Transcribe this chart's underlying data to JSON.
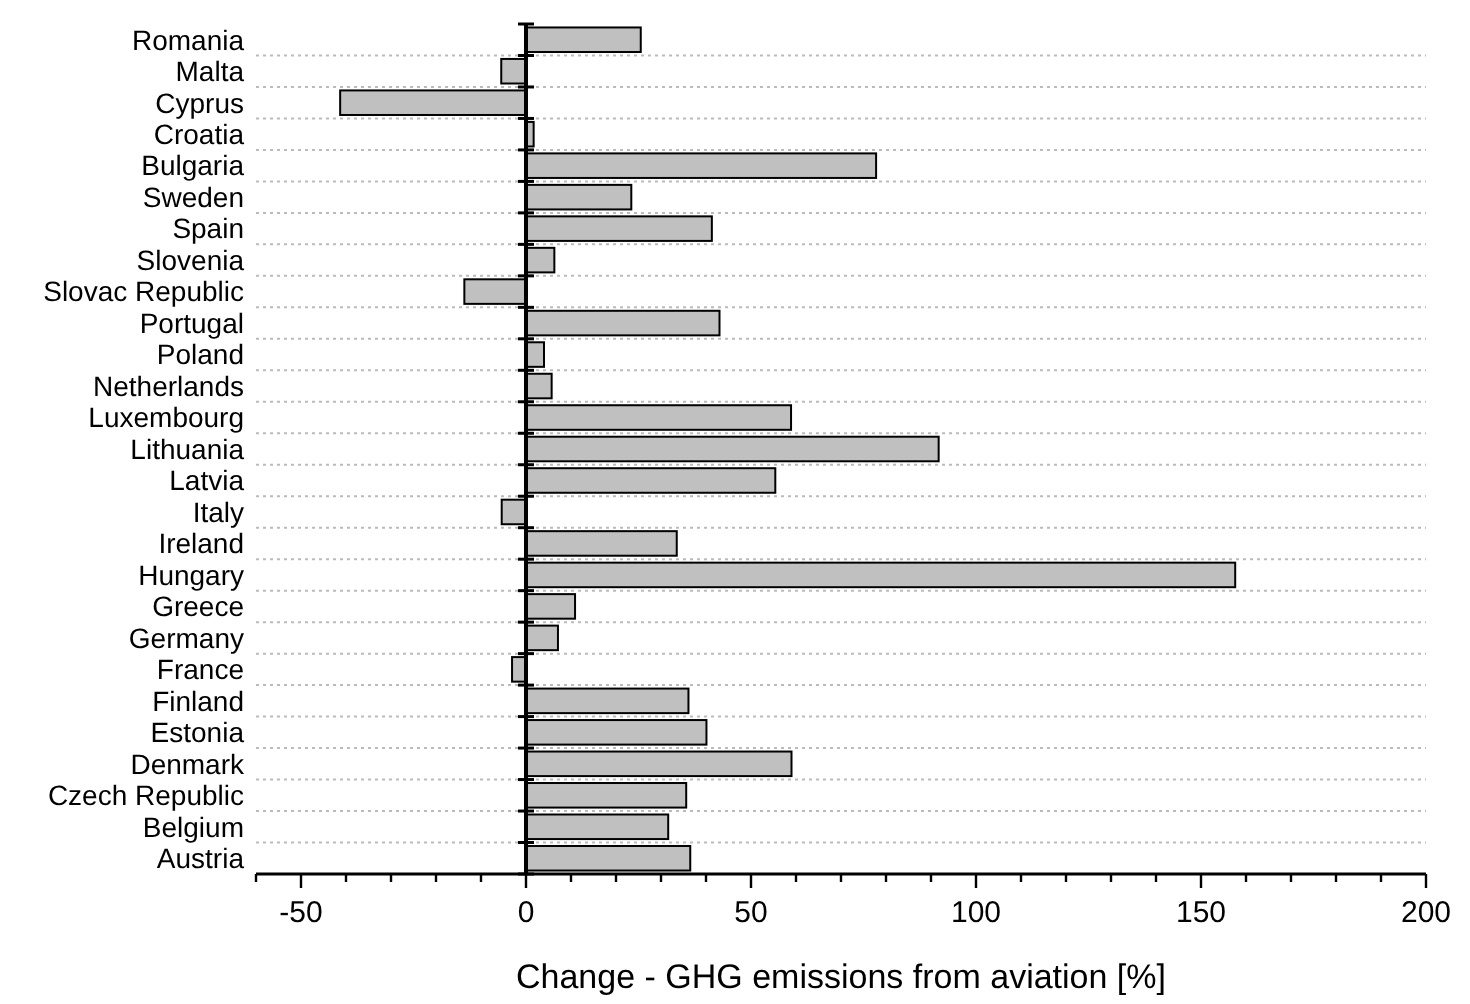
{
  "chart_data": {
    "type": "bar",
    "orientation": "horizontal",
    "xlabel": "Change - GHG emissions from aviation  [%]",
    "categories": [
      "Romania",
      "Malta",
      "Cyprus",
      "Croatia",
      "Bulgaria",
      "Sweden",
      "Spain",
      "Slovenia",
      "Slovac Republic",
      "Portugal",
      "Poland",
      "Netherlands",
      "Luxembourg",
      "Lithuania",
      "Latvia",
      "Italy",
      "Ireland",
      "Hungary",
      "Greece",
      "Germany",
      "France",
      "Finland",
      "Estonia",
      "Denmark",
      "Czech Republic",
      "Belgium",
      "Austria"
    ],
    "values": [
      25.5,
      -5.5,
      -41.3,
      1.7,
      77.8,
      23.4,
      41.3,
      6.3,
      -13.7,
      43,
      4,
      5.7,
      58.9,
      91.7,
      55.4,
      -5.4,
      33.5,
      157.6,
      10.9,
      7.1,
      -3.1,
      36.1,
      40.1,
      59,
      35.6,
      31.6,
      36.5
    ],
    "color": "#c0c0c0",
    "xlim": [
      -60,
      200
    ],
    "xticks": [
      {
        "value": -60,
        "label": null
      },
      -50,
      {
        "value": -40,
        "label": null
      },
      {
        "value": -30,
        "label": null
      },
      {
        "value": -20,
        "label": null
      },
      {
        "value": -10,
        "label": null
      },
      0,
      {
        "value": 10,
        "label": null
      },
      {
        "value": 20,
        "label": null
      },
      {
        "value": 30,
        "label": null
      },
      {
        "value": 40,
        "label": null
      },
      50,
      {
        "value": 60,
        "label": null
      },
      {
        "value": 70,
        "label": null
      },
      {
        "value": 80,
        "label": null
      },
      {
        "value": 90,
        "label": null
      },
      100,
      {
        "value": 110,
        "label": null
      },
      {
        "value": 120,
        "label": null
      },
      {
        "value": 130,
        "label": null
      },
      {
        "value": 140,
        "label": null
      },
      150,
      {
        "value": 160,
        "label": null
      },
      {
        "value": 170,
        "label": null
      },
      {
        "value": 180,
        "label": null
      },
      {
        "value": 190,
        "label": null
      },
      200
    ],
    "grid": "y"
  }
}
